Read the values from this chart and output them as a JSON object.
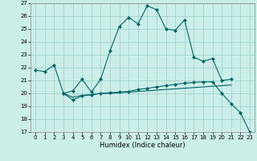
{
  "xlabel": "Humidex (Indice chaleur)",
  "xlim": [
    -0.5,
    23.5
  ],
  "ylim": [
    17,
    27
  ],
  "yticks": [
    17,
    18,
    19,
    20,
    21,
    22,
    23,
    24,
    25,
    26,
    27
  ],
  "xticks": [
    0,
    1,
    2,
    3,
    4,
    5,
    6,
    7,
    8,
    9,
    10,
    11,
    12,
    13,
    14,
    15,
    16,
    17,
    18,
    19,
    20,
    21,
    22,
    23
  ],
  "bg_color": "#cceee8",
  "grid_color": "#99cccc",
  "line_color": "#006666",
  "line1": {
    "x": [
      0,
      1,
      2,
      3,
      4,
      5,
      6,
      7,
      8,
      9,
      10,
      11,
      12,
      13,
      14,
      15,
      16,
      17,
      18,
      19,
      20,
      21
    ],
    "y": [
      21.8,
      21.7,
      22.2,
      20.0,
      20.2,
      21.1,
      20.1,
      21.1,
      23.3,
      25.2,
      25.9,
      25.4,
      26.8,
      26.5,
      25.0,
      24.9,
      25.7,
      22.8,
      22.5,
      22.7,
      21.0,
      21.1
    ]
  },
  "line2": {
    "x": [
      3,
      4,
      5,
      6,
      7,
      8,
      9,
      10,
      11,
      12,
      13,
      14,
      15,
      16,
      17,
      18,
      19,
      20,
      21,
      22,
      23
    ],
    "y": [
      20.0,
      19.5,
      19.8,
      19.9,
      20.0,
      20.05,
      20.1,
      20.15,
      20.3,
      20.4,
      20.5,
      20.6,
      20.7,
      20.8,
      20.85,
      20.9,
      20.9,
      20.0,
      19.2,
      18.5,
      17.0
    ]
  },
  "line3": {
    "x": [
      3,
      4,
      5,
      6,
      7,
      8,
      9,
      10,
      11,
      12,
      13,
      14,
      15,
      16,
      17,
      18,
      19,
      20,
      21
    ],
    "y": [
      20.0,
      19.7,
      19.85,
      19.9,
      20.0,
      20.0,
      20.05,
      20.1,
      20.15,
      20.2,
      20.25,
      20.3,
      20.35,
      20.4,
      20.45,
      20.5,
      20.55,
      20.6,
      20.65
    ]
  }
}
